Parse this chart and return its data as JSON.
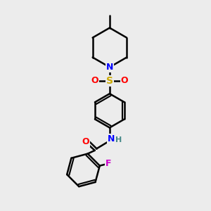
{
  "bg_color": "#ececec",
  "line_color": "#000000",
  "bond_width": 1.8,
  "atom_colors": {
    "N": "#0000ff",
    "O": "#ff0000",
    "S": "#ccaa00",
    "F": "#cc00cc",
    "NH": "#0000aa"
  },
  "figsize": [
    3.0,
    3.0
  ],
  "dpi": 100
}
